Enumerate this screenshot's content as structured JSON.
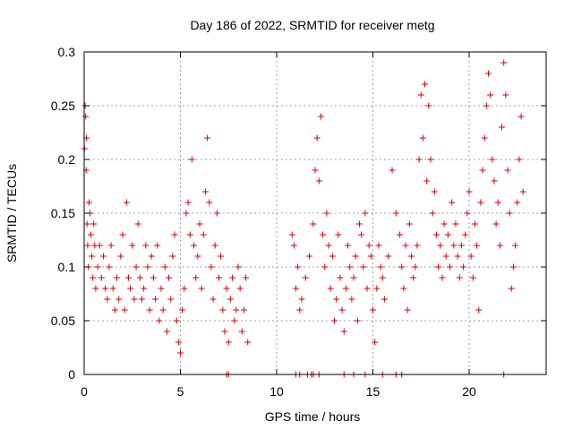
{
  "chart_data": {
    "type": "scatter",
    "title": "Day 186 of 2022, SRMTID for receiver metg",
    "xlabel": "GPS time / hours",
    "ylabel": "SRMTID / TECUs",
    "xlim": [
      0,
      24
    ],
    "ylim": [
      0,
      0.3
    ],
    "x_ticks": [
      0,
      5,
      10,
      15,
      20
    ],
    "x_tick_labels": [
      "0",
      "5",
      "10",
      "15",
      "20"
    ],
    "y_ticks": [
      0,
      0.05,
      0.1,
      0.15,
      0.2,
      0.25,
      0.3
    ],
    "y_tick_labels": [
      "0",
      "0.05",
      "0.1",
      "0.15",
      "0.2",
      "0.25",
      "0.3"
    ],
    "grid": true,
    "marker": "+",
    "colors": {
      "series": "#dd0000",
      "grid": "#a0a0a0",
      "axis": "#000000"
    },
    "series": [
      {
        "name": "SRMTID",
        "points": [
          [
            0.02,
            0.21
          ],
          [
            0.05,
            0.25
          ],
          [
            0.08,
            0.24
          ],
          [
            0.1,
            0.19
          ],
          [
            0.12,
            0.22
          ],
          [
            0.15,
            0.14
          ],
          [
            0.18,
            0.12
          ],
          [
            0.22,
            0.1
          ],
          [
            0.25,
            0.16
          ],
          [
            0.3,
            0.15
          ],
          [
            0.35,
            0.13
          ],
          [
            0.4,
            0.11
          ],
          [
            0.45,
            0.09
          ],
          [
            0.5,
            0.14
          ],
          [
            0.55,
            0.12
          ],
          [
            0.6,
            0.08
          ],
          [
            0.7,
            0.1
          ],
          [
            0.8,
            0.12
          ],
          [
            0.9,
            0.09
          ],
          [
            1.0,
            0.11
          ],
          [
            1.1,
            0.08
          ],
          [
            1.2,
            0.07
          ],
          [
            1.3,
            0.1
          ],
          [
            1.4,
            0.12
          ],
          [
            1.5,
            0.08
          ],
          [
            1.6,
            0.06
          ],
          [
            1.7,
            0.09
          ],
          [
            1.8,
            0.07
          ],
          [
            1.9,
            0.11
          ],
          [
            2.0,
            0.13
          ],
          [
            2.1,
            0.06
          ],
          [
            2.2,
            0.16
          ],
          [
            2.3,
            0.09
          ],
          [
            2.4,
            0.08
          ],
          [
            2.5,
            0.12
          ],
          [
            2.6,
            0.07
          ],
          [
            2.7,
            0.1
          ],
          [
            2.8,
            0.14
          ],
          [
            2.9,
            0.09
          ],
          [
            3.0,
            0.07
          ],
          [
            3.1,
            0.08
          ],
          [
            3.2,
            0.12
          ],
          [
            3.3,
            0.1
          ],
          [
            3.4,
            0.06
          ],
          [
            3.5,
            0.11
          ],
          [
            3.6,
            0.09
          ],
          [
            3.7,
            0.07
          ],
          [
            3.8,
            0.12
          ],
          [
            3.9,
            0.05
          ],
          [
            4.0,
            0.08
          ],
          [
            4.1,
            0.06
          ],
          [
            4.2,
            0.1
          ],
          [
            4.3,
            0.04
          ],
          [
            4.4,
            0.09
          ],
          [
            4.5,
            0.07
          ],
          [
            4.6,
            0.11
          ],
          [
            4.7,
            0.13
          ],
          [
            4.8,
            0.05
          ],
          [
            4.9,
            0.03
          ],
          [
            5.0,
            0.02
          ],
          [
            5.1,
            0.06
          ],
          [
            5.2,
            0.08
          ],
          [
            5.3,
            0.15
          ],
          [
            5.4,
            0.16
          ],
          [
            5.5,
            0.13
          ],
          [
            5.6,
            0.2
          ],
          [
            5.7,
            0.12
          ],
          [
            5.8,
            0.09
          ],
          [
            5.9,
            0.11
          ],
          [
            6.0,
            0.14
          ],
          [
            6.1,
            0.08
          ],
          [
            6.2,
            0.13
          ],
          [
            6.3,
            0.17
          ],
          [
            6.4,
            0.22
          ],
          [
            6.5,
            0.16
          ],
          [
            6.6,
            0.1
          ],
          [
            6.7,
            0.07
          ],
          [
            6.8,
            0.12
          ],
          [
            6.9,
            0.15
          ],
          [
            7.0,
            0.09
          ],
          [
            7.1,
            0.11
          ],
          [
            7.2,
            0.06
          ],
          [
            7.3,
            0.04
          ],
          [
            7.4,
            0.08
          ],
          [
            7.5,
            0.03
          ],
          [
            7.6,
            0.07
          ],
          [
            7.7,
            0.09
          ],
          [
            7.8,
            0.05
          ],
          [
            7.9,
            0.06
          ],
          [
            8.0,
            0.1
          ],
          [
            8.1,
            0.08
          ],
          [
            8.2,
            0.04
          ],
          [
            8.3,
            0.06
          ],
          [
            8.4,
            0.09
          ],
          [
            8.5,
            0.03
          ],
          [
            10.8,
            0.13
          ],
          [
            10.9,
            0.12
          ],
          [
            11.0,
            0.08
          ],
          [
            11.1,
            0.1
          ],
          [
            11.2,
            0.06
          ],
          [
            11.3,
            0.07
          ],
          [
            11.5,
            0.09
          ],
          [
            11.7,
            0.11
          ],
          [
            11.9,
            0.14
          ],
          [
            12.0,
            0.19
          ],
          [
            12.1,
            0.22
          ],
          [
            12.2,
            0.18
          ],
          [
            12.3,
            0.24
          ],
          [
            12.4,
            0.13
          ],
          [
            12.5,
            0.1
          ],
          [
            12.6,
            0.15
          ],
          [
            12.7,
            0.12
          ],
          [
            12.8,
            0.08
          ],
          [
            12.9,
            0.11
          ],
          [
            13.0,
            0.05
          ],
          [
            13.1,
            0.07
          ],
          [
            13.2,
            0.13
          ],
          [
            13.3,
            0.09
          ],
          [
            13.4,
            0.06
          ],
          [
            13.5,
            0.04
          ],
          [
            13.6,
            0.08
          ],
          [
            13.7,
            0.12
          ],
          [
            13.8,
            0.1
          ],
          [
            13.9,
            0.07
          ],
          [
            14.0,
            0.09
          ],
          [
            14.1,
            0.11
          ],
          [
            14.2,
            0.05
          ],
          [
            14.3,
            0.14
          ],
          [
            14.4,
            0.13
          ],
          [
            14.5,
            0.1
          ],
          [
            14.6,
            0.15
          ],
          [
            14.7,
            0.08
          ],
          [
            14.8,
            0.12
          ],
          [
            14.9,
            0.11
          ],
          [
            15.0,
            0.06
          ],
          [
            15.1,
            0.03
          ],
          [
            15.2,
            0.08
          ],
          [
            15.3,
            0.12
          ],
          [
            15.4,
            0.1
          ],
          [
            15.5,
            0.09
          ],
          [
            15.6,
            0.07
          ],
          [
            15.8,
            0.11
          ],
          [
            16.0,
            0.19
          ],
          [
            16.2,
            0.15
          ],
          [
            16.4,
            0.13
          ],
          [
            16.5,
            0.1
          ],
          [
            16.6,
            0.08
          ],
          [
            16.7,
            0.12
          ],
          [
            16.8,
            0.06
          ],
          [
            16.9,
            0.14
          ],
          [
            17.0,
            0.11
          ],
          [
            17.1,
            0.09
          ],
          [
            17.2,
            0.1
          ],
          [
            17.3,
            0.12
          ],
          [
            17.4,
            0.2
          ],
          [
            17.5,
            0.26
          ],
          [
            17.6,
            0.22
          ],
          [
            17.7,
            0.27
          ],
          [
            17.8,
            0.18
          ],
          [
            17.9,
            0.25
          ],
          [
            18.0,
            0.2
          ],
          [
            18.1,
            0.15
          ],
          [
            18.2,
            0.17
          ],
          [
            18.3,
            0.13
          ],
          [
            18.4,
            0.1
          ],
          [
            18.5,
            0.12
          ],
          [
            18.6,
            0.09
          ],
          [
            18.7,
            0.14
          ],
          [
            18.8,
            0.11
          ],
          [
            18.9,
            0.13
          ],
          [
            19.0,
            0.1
          ],
          [
            19.1,
            0.16
          ],
          [
            19.2,
            0.12
          ],
          [
            19.3,
            0.14
          ],
          [
            19.4,
            0.11
          ],
          [
            19.5,
            0.09
          ],
          [
            19.6,
            0.12
          ],
          [
            19.7,
            0.1
          ],
          [
            19.8,
            0.13
          ],
          [
            19.9,
            0.15
          ],
          [
            20.0,
            0.17
          ],
          [
            20.1,
            0.11
          ],
          [
            20.2,
            0.09
          ],
          [
            20.3,
            0.14
          ],
          [
            20.4,
            0.12
          ],
          [
            20.5,
            0.06
          ],
          [
            20.6,
            0.16
          ],
          [
            20.7,
            0.19
          ],
          [
            20.8,
            0.22
          ],
          [
            20.9,
            0.25
          ],
          [
            21.0,
            0.28
          ],
          [
            21.1,
            0.26
          ],
          [
            21.2,
            0.2
          ],
          [
            21.3,
            0.18
          ],
          [
            21.4,
            0.14
          ],
          [
            21.5,
            0.16
          ],
          [
            21.6,
            0.12
          ],
          [
            21.7,
            0.23
          ],
          [
            21.8,
            0.29
          ],
          [
            21.9,
            0.26
          ],
          [
            22.0,
            0.19
          ],
          [
            22.1,
            0.15
          ],
          [
            22.2,
            0.08
          ],
          [
            22.3,
            0.1
          ],
          [
            22.4,
            0.12
          ],
          [
            22.5,
            0.16
          ],
          [
            22.6,
            0.2
          ],
          [
            22.7,
            0.24
          ],
          [
            22.8,
            0.17
          ]
        ],
        "zero_points": [
          7.4,
          7.5,
          11.0,
          11.2,
          11.6,
          11.8,
          11.9,
          12.2,
          13.5,
          14.0,
          14.6,
          15.5,
          16.2,
          16.5,
          21.8
        ]
      }
    ]
  }
}
